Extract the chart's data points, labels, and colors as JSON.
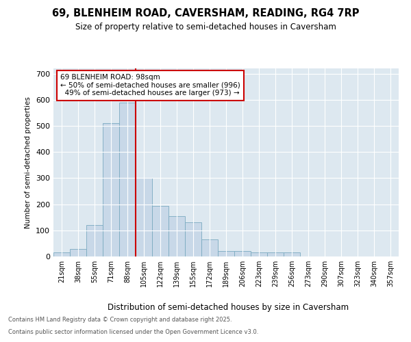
{
  "title1": "69, BLENHEIM ROAD, CAVERSHAM, READING, RG4 7RP",
  "title2": "Size of property relative to semi-detached houses in Caversham",
  "xlabel": "Distribution of semi-detached houses by size in Caversham",
  "ylabel": "Number of semi-detached properties",
  "categories": [
    "21sqm",
    "38sqm",
    "55sqm",
    "71sqm",
    "88sqm",
    "105sqm",
    "122sqm",
    "139sqm",
    "155sqm",
    "172sqm",
    "189sqm",
    "206sqm",
    "223sqm",
    "239sqm",
    "256sqm",
    "273sqm",
    "290sqm",
    "307sqm",
    "323sqm",
    "340sqm",
    "357sqm"
  ],
  "values": [
    15,
    30,
    120,
    510,
    590,
    300,
    195,
    155,
    130,
    65,
    20,
    20,
    15,
    15,
    15,
    0,
    0,
    0,
    0,
    0,
    0
  ],
  "bar_color": "#c8d8e8",
  "bar_edge_color": "#7aaac0",
  "property_line_index": 4.5,
  "property_sqm": "98sqm",
  "smaller_pct": "50%",
  "smaller_count": 996,
  "larger_pct": "49%",
  "larger_count": 973,
  "annotation_box_color": "#cc0000",
  "ylim": [
    0,
    720
  ],
  "yticks": [
    0,
    100,
    200,
    300,
    400,
    500,
    600,
    700
  ],
  "footer1": "Contains HM Land Registry data © Crown copyright and database right 2025.",
  "footer2": "Contains public sector information licensed under the Open Government Licence v3.0.",
  "bg_color": "#ffffff",
  "plot_bg_color": "#dde8f0"
}
